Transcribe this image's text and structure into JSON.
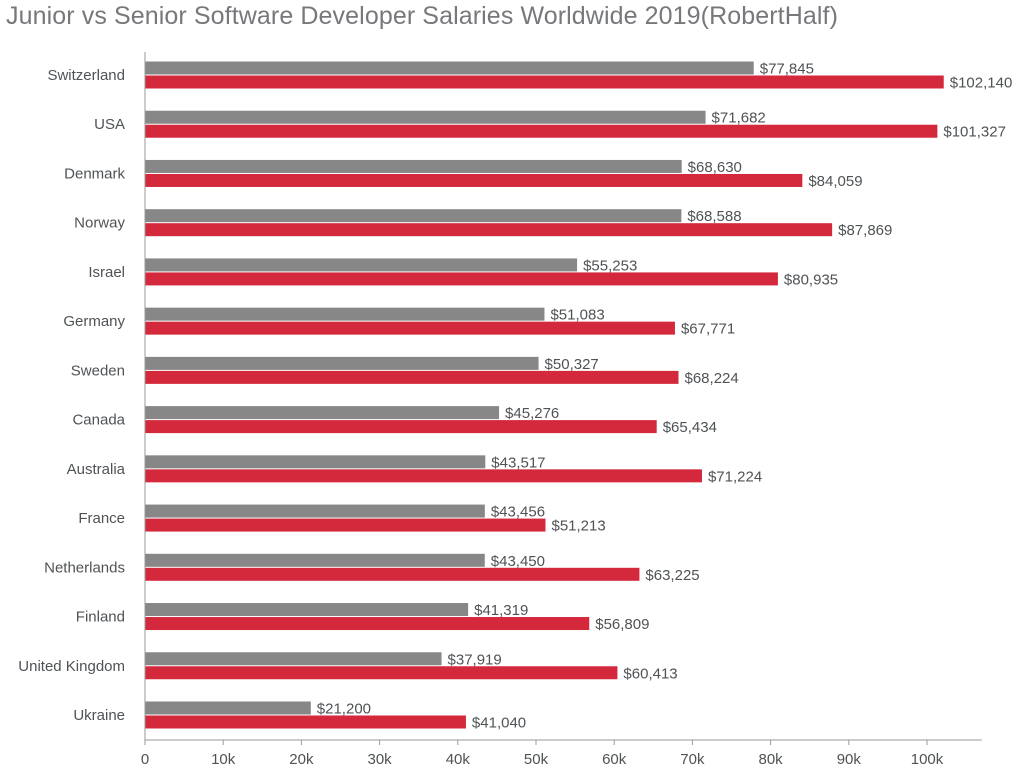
{
  "chart_data": {
    "type": "bar",
    "orientation": "horizontal",
    "title": "Junior vs Senior Software Developer Salaries Worldwide 2019(RobertHalf)",
    "xlabel": "",
    "ylabel": "",
    "xlim": [
      0,
      107000
    ],
    "x_ticks": [
      0,
      10000,
      20000,
      30000,
      40000,
      50000,
      60000,
      70000,
      80000,
      90000,
      100000
    ],
    "x_tick_labels": [
      "0",
      "10k",
      "20k",
      "30k",
      "40k",
      "50k",
      "60k",
      "70k",
      "80k",
      "90k",
      "100k"
    ],
    "grid": false,
    "legend": "none",
    "value_prefix": "$",
    "categories": [
      "Switzerland",
      "USA",
      "Denmark",
      "Norway",
      "Israel",
      "Germany",
      "Sweden",
      "Canada",
      "Australia",
      "France",
      "Netherlands",
      "Finland",
      "United Kingdom",
      "Ukraine"
    ],
    "series": [
      {
        "color": "#878787",
        "values": [
          77845,
          71682,
          68630,
          68588,
          55253,
          51083,
          50327,
          45276,
          43517,
          43456,
          43450,
          41319,
          37919,
          21200
        ]
      },
      {
        "color": "#d4293c",
        "values": [
          102140,
          101327,
          84059,
          87869,
          80935,
          67771,
          68224,
          65434,
          71224,
          51213,
          63225,
          56809,
          60413,
          41040
        ]
      }
    ]
  },
  "colors": {
    "title": "#76787b",
    "text": "#4f5356",
    "axis": "#9a9a9a"
  }
}
